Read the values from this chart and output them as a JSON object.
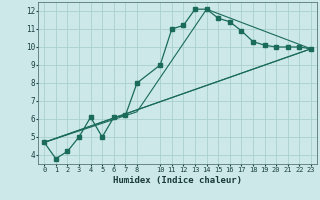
{
  "xlabel": "Humidex (Indice chaleur)",
  "background_color": "#cce8e8",
  "grid_color": "#aacfcf",
  "line_color": "#1a6b5a",
  "xlim": [
    -0.5,
    23.5
  ],
  "ylim": [
    3.5,
    12.5
  ],
  "yticks": [
    4,
    5,
    6,
    7,
    8,
    9,
    10,
    11,
    12
  ],
  "xticks": [
    0,
    1,
    2,
    3,
    4,
    5,
    6,
    7,
    8,
    10,
    11,
    12,
    13,
    14,
    15,
    16,
    17,
    18,
    19,
    20,
    21,
    22,
    23
  ],
  "curve_x": [
    0,
    1,
    2,
    3,
    4,
    5,
    6,
    7,
    8,
    10,
    11,
    12,
    13,
    14,
    15,
    16,
    17,
    18,
    19,
    20,
    21,
    22,
    23
  ],
  "curve_y": [
    4.7,
    3.8,
    4.2,
    5.0,
    6.1,
    5.0,
    6.1,
    6.2,
    8.0,
    9.0,
    11.0,
    11.2,
    12.1,
    12.1,
    11.6,
    11.4,
    10.9,
    10.3,
    10.1,
    10.0,
    10.0,
    10.0,
    9.9
  ],
  "line1_x": [
    0,
    23
  ],
  "line1_y": [
    4.7,
    9.9
  ],
  "line2_x": [
    0,
    23
  ],
  "line2_y": [
    4.7,
    9.9
  ],
  "line3_x": [
    0,
    8,
    14,
    23
  ],
  "line3_y": [
    4.7,
    6.4,
    12.1,
    9.9
  ]
}
